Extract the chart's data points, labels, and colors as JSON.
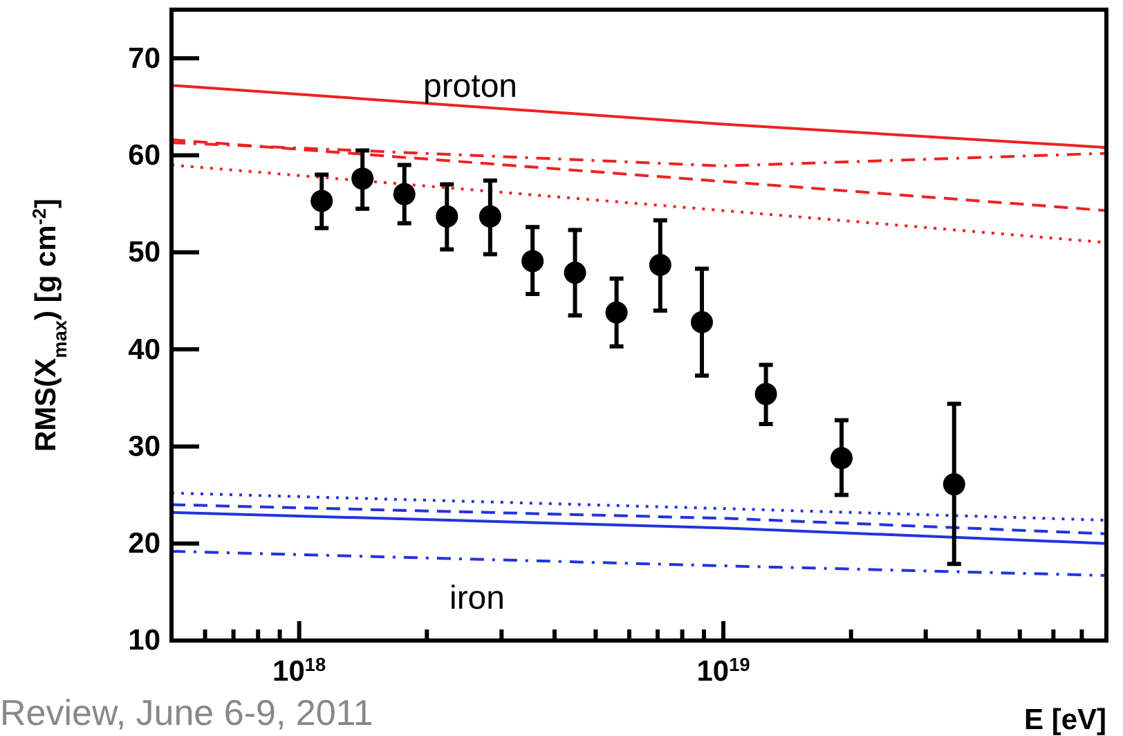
{
  "chart_data": {
    "type": "scatter",
    "ylabel": "RMS(X$_{max}$) [g cm$^{-2}$]",
    "xlabel": "E [eV]",
    "log": "x",
    "xlim": [
      5e+17,
      8e+19
    ],
    "ylim": [
      10,
      75
    ],
    "xticks": [
      {
        "value": 5e+17,
        "label": null
      },
      {
        "value": 6e+17,
        "label": null
      },
      {
        "value": 7e+17,
        "label": null
      },
      {
        "value": 8e+17,
        "label": null
      },
      {
        "value": 9e+17,
        "label": null
      },
      {
        "value": 1e+18,
        "label": "10$^{18}$"
      },
      {
        "value": 2e+18,
        "label": null
      },
      {
        "value": 3e+18,
        "label": null
      },
      {
        "value": 4e+18,
        "label": null
      },
      {
        "value": 5e+18,
        "label": null
      },
      {
        "value": 6e+18,
        "label": null
      },
      {
        "value": 7e+18,
        "label": null
      },
      {
        "value": 8e+18,
        "label": null
      },
      {
        "value": 9e+18,
        "label": null
      },
      {
        "value": 1e+19,
        "label": "10$^{19}$"
      },
      {
        "value": 2e+19,
        "label": null
      },
      {
        "value": 3e+19,
        "label": null
      },
      {
        "value": 4e+19,
        "label": null
      },
      {
        "value": 5e+19,
        "label": null
      },
      {
        "value": 6e+19,
        "label": null
      },
      {
        "value": 7e+19,
        "label": null
      },
      {
        "value": 8e+19,
        "label": null
      }
    ],
    "yticks": [
      10,
      20,
      30,
      40,
      50,
      60,
      70
    ],
    "grid": false,
    "series": [
      {
        "type": "line",
        "color": "#ee2222",
        "line_style": "solid",
        "marker": "none",
        "x": [
          5e+17,
          1e+19,
          8e+19
        ],
        "values": [
          67.2,
          63.2,
          60.8
        ]
      },
      {
        "type": "line",
        "color": "#ee2222",
        "line_style": "dashdot",
        "marker": "none",
        "x": [
          5e+17,
          1e+19,
          8e+19
        ],
        "values": [
          61.3,
          58.9,
          60.2
        ]
      },
      {
        "type": "line",
        "color": "#ee2222",
        "line_style": "dashed",
        "marker": "none",
        "x": [
          5e+17,
          1e+19,
          8e+19
        ],
        "values": [
          61.6,
          57.3,
          54.3
        ]
      },
      {
        "type": "line",
        "color": "#ee2222",
        "line_style": "dotted",
        "marker": "none",
        "x": [
          5e+17,
          1e+19,
          8e+19
        ],
        "values": [
          59,
          54.3,
          51
        ]
      },
      {
        "type": "line",
        "color": "#2233dd",
        "line_style": "dotted",
        "marker": "none",
        "x": [
          5e+17,
          1e+19,
          8e+19
        ],
        "values": [
          25.2,
          23.6,
          22.4
        ]
      },
      {
        "type": "line",
        "color": "#2233dd",
        "line_style": "dashed",
        "marker": "none",
        "x": [
          5e+17,
          1e+19,
          8e+19
        ],
        "values": [
          24,
          22.6,
          21
        ]
      },
      {
        "type": "line",
        "color": "#2233dd",
        "line_style": "solid",
        "marker": "none",
        "x": [
          5e+17,
          1e+19,
          8e+19
        ],
        "values": [
          23.2,
          21.6,
          20
        ]
      },
      {
        "type": "line",
        "color": "#2233dd",
        "line_style": "dashdot",
        "marker": "none",
        "x": [
          5e+17,
          1e+19,
          8e+19
        ],
        "values": [
          19.2,
          17.7,
          16.7
        ]
      },
      {
        "color": "#000000",
        "marker": "circle",
        "x": [
          1.13e+18,
          1.41e+18,
          1.77e+18,
          2.23e+18,
          2.82e+18,
          3.55e+18,
          4.47e+18,
          5.6e+18,
          7.1e+18,
          8.9e+18,
          1.26e+19,
          1.9e+19,
          3.5e+19
        ],
        "values": [
          55.3,
          57.6,
          56,
          53.7,
          53.7,
          49.1,
          47.9,
          43.8,
          48.7,
          42.8,
          35.4,
          28.8,
          26.1
        ],
        "errors": [
          [
            52.5,
            58
          ],
          [
            54.5,
            60.5
          ],
          [
            53,
            59
          ],
          [
            50.3,
            57
          ],
          [
            49.8,
            57.4
          ],
          [
            45.7,
            52.6
          ],
          [
            43.5,
            52.3
          ],
          [
            40.3,
            47.3
          ],
          [
            44,
            53.3
          ],
          [
            37.3,
            48.3
          ],
          [
            32.3,
            38.4
          ],
          [
            25,
            32.7
          ],
          [
            17.9,
            34.4
          ]
        ]
      }
    ],
    "annotations": [
      "proton",
      "iron",
      "Review, June 6-9, 2011"
    ]
  }
}
